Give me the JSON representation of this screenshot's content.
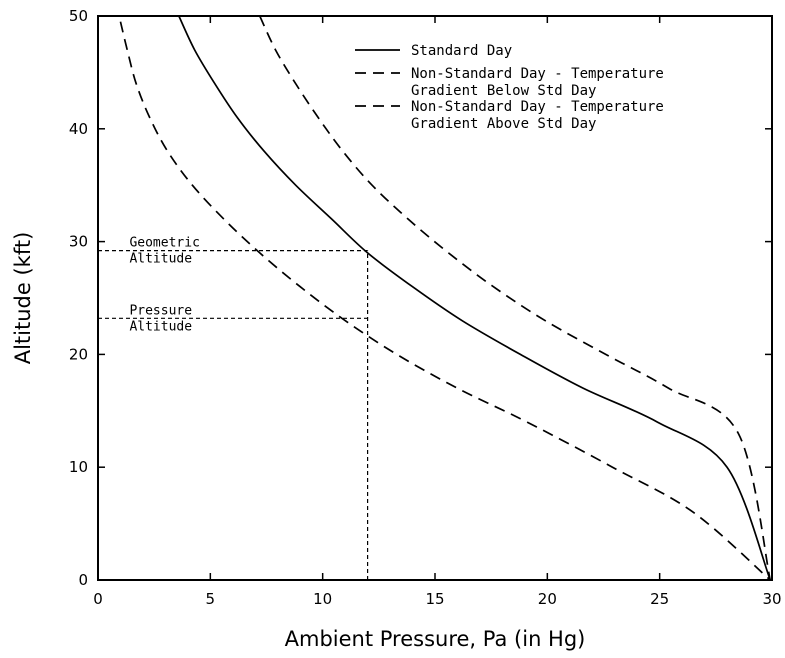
{
  "chart_data": {
    "type": "line",
    "xlabel": "Ambient Pressure, Pa (in Hg)",
    "ylabel": "Altitude (kft)",
    "xlim": [
      0,
      30
    ],
    "ylim": [
      0,
      50
    ],
    "xticks": [
      "0",
      "5",
      "10",
      "15",
      "20",
      "25",
      "30"
    ],
    "yticks": [
      "0",
      "10",
      "20",
      "30",
      "40",
      "50"
    ],
    "grid": false,
    "legend_position": "top-right",
    "legend": [
      {
        "style": "solid",
        "lines": [
          "Standard Day"
        ]
      },
      {
        "style": "dashed",
        "lines": [
          "Non-Standard Day - Temperature",
          "Gradient Below Std Day"
        ]
      },
      {
        "style": "dashed",
        "lines": [
          "Non-Standard Day - Temperature",
          "Gradient Above Std Day"
        ]
      }
    ],
    "series": [
      {
        "name": "Standard Day",
        "style": "solid",
        "x": [
          3.6,
          4.3,
          5.2,
          6.2,
          7.4,
          8.8,
          10.4,
          12.0,
          14.0,
          16.2,
          18.8,
          21.6,
          24.9,
          28.0,
          29.92
        ],
        "y": [
          50,
          47,
          44,
          41,
          38,
          35,
          32,
          29,
          26,
          23,
          20,
          17,
          14,
          10,
          0
        ]
      },
      {
        "name": "Non-Standard Day - Temperature Gradient Below Std Day",
        "style": "dashed",
        "x": [
          1.0,
          1.3,
          1.7,
          2.3,
          3.1,
          4.2,
          5.6,
          7.2,
          9.0,
          11.0,
          13.3,
          16.0,
          19.1,
          22.9,
          26.5,
          29.92
        ],
        "y": [
          49.5,
          47,
          44,
          41,
          38,
          35,
          32,
          29,
          26,
          23,
          20,
          17,
          14,
          10,
          6,
          0
        ]
      },
      {
        "name": "Non-Standard Day - Temperature Gradient Above Std Day",
        "style": "dashed",
        "x": [
          7.2,
          7.9,
          8.8,
          9.8,
          10.9,
          12.2,
          13.8,
          15.6,
          17.6,
          19.9,
          22.6,
          25.4,
          28.5,
          29.92
        ],
        "y": [
          50,
          47,
          44,
          41,
          38,
          35,
          32,
          29,
          26,
          23,
          20,
          17,
          13,
          0
        ]
      }
    ],
    "reference_lines": [
      {
        "type": "vertical",
        "x": 12.0,
        "y_range": [
          0,
          29.2
        ]
      },
      {
        "type": "horizontal",
        "y": 29.2,
        "x_range": [
          0,
          12.0
        ]
      },
      {
        "type": "horizontal",
        "y": 23.2,
        "x_range": [
          0,
          12.0
        ]
      }
    ],
    "annotations": [
      {
        "lines": [
          "Geometric",
          "Altitude"
        ],
        "x": 1.4,
        "y": 29.2
      },
      {
        "lines": [
          "Pressure",
          "Altitude"
        ],
        "x": 1.4,
        "y": 23.2
      }
    ]
  }
}
